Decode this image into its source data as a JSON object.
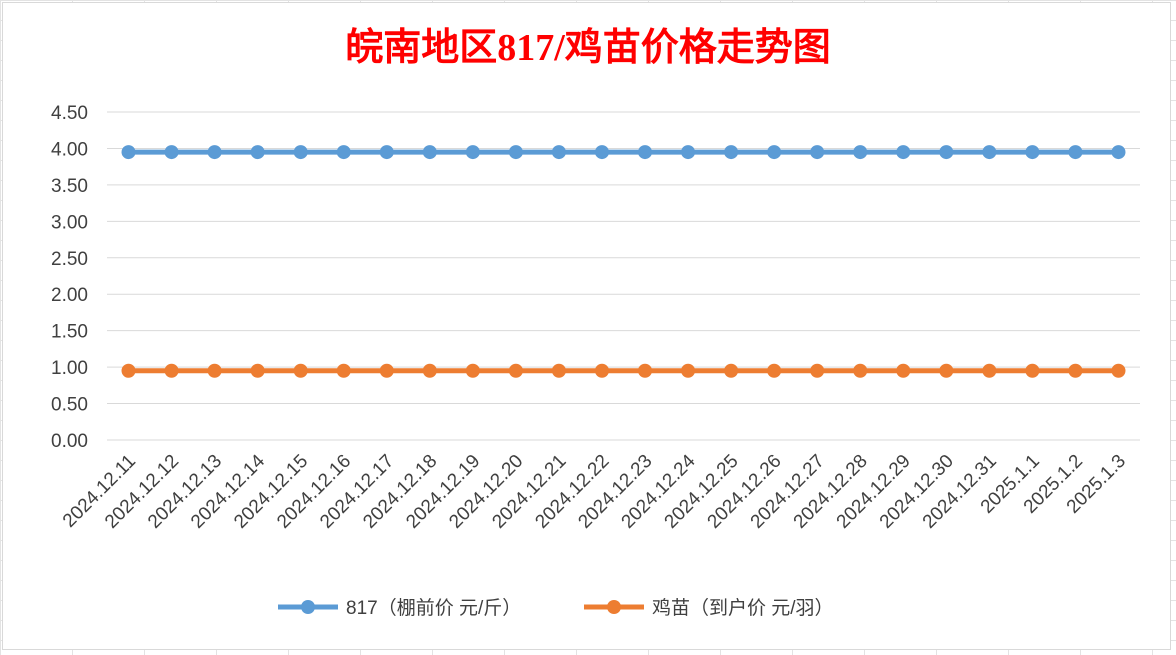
{
  "chart_data": {
    "type": "line",
    "title": "皖南地区817/鸡苗价格走势图",
    "xlabel": "",
    "ylabel": "",
    "ylim": [
      0,
      4.5
    ],
    "yticks": [
      "0.00",
      "0.50",
      "1.00",
      "1.50",
      "2.00",
      "2.50",
      "3.00",
      "3.50",
      "4.00",
      "4.50"
    ],
    "grid": true,
    "legend_position": "bottom",
    "categories": [
      "2024.12.11",
      "2024.12.12",
      "2024.12.13",
      "2024.12.14",
      "2024.12.15",
      "2024.12.16",
      "2024.12.17",
      "2024.12.18",
      "2024.12.19",
      "2024.12.20",
      "2024.12.21",
      "2024.12.22",
      "2024.12.23",
      "2024.12.24",
      "2024.12.25",
      "2024.12.26",
      "2024.12.27",
      "2024.12.28",
      "2024.12.29",
      "2024.12.30",
      "2024.12.31",
      "2025.1.1",
      "2025.1.2",
      "2025.1.3"
    ],
    "series": [
      {
        "name": "817（棚前价 元/斤）",
        "color": "#5b9bd5",
        "values": [
          3.95,
          3.95,
          3.95,
          3.95,
          3.95,
          3.95,
          3.95,
          3.95,
          3.95,
          3.95,
          3.95,
          3.95,
          3.95,
          3.95,
          3.95,
          3.95,
          3.95,
          3.95,
          3.95,
          3.95,
          3.95,
          3.95,
          3.95,
          3.95
        ]
      },
      {
        "name": "鸡苗（到户价 元/羽）",
        "color": "#ed7d31",
        "values": [
          0.95,
          0.95,
          0.95,
          0.95,
          0.95,
          0.95,
          0.95,
          0.95,
          0.95,
          0.95,
          0.95,
          0.95,
          0.95,
          0.95,
          0.95,
          0.95,
          0.95,
          0.95,
          0.95,
          0.95,
          0.95,
          0.95,
          0.95,
          0.95
        ]
      }
    ]
  }
}
